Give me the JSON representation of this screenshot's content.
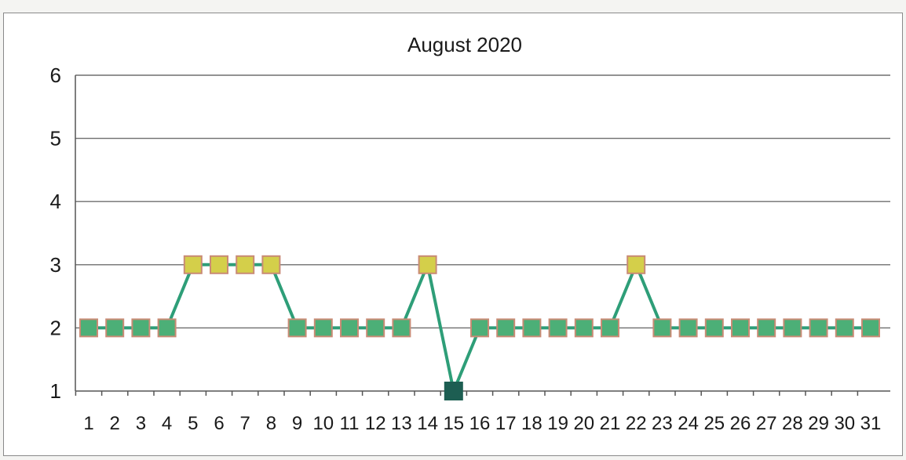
{
  "chart_data": {
    "type": "line",
    "title": "August 2020",
    "xlabel": "",
    "ylabel": "",
    "categories": [
      "1",
      "2",
      "3",
      "4",
      "5",
      "6",
      "7",
      "8",
      "9",
      "10",
      "11",
      "12",
      "13",
      "14",
      "15",
      "16",
      "17",
      "18",
      "19",
      "20",
      "21",
      "22",
      "23",
      "24",
      "25",
      "26",
      "27",
      "28",
      "29",
      "30",
      "31"
    ],
    "series": [
      {
        "values": [
          2,
          2,
          2,
          2,
          3,
          3,
          3,
          3,
          2,
          2,
          2,
          2,
          2,
          3,
          1,
          2,
          2,
          2,
          2,
          2,
          2,
          3,
          2,
          2,
          2,
          2,
          2,
          2,
          2,
          2,
          2
        ]
      }
    ],
    "ylim": [
      1,
      6
    ],
    "yticks": [
      "1",
      "2",
      "3",
      "4",
      "5",
      "6"
    ],
    "grid": true,
    "legend": "none",
    "colors": {
      "line": "#2e9e78",
      "marker_value_2": "#4caf77",
      "marker_value_3": "#d4cf4a",
      "marker_value_1": "#1d5e52",
      "marker_edge": "#c98b75"
    }
  }
}
